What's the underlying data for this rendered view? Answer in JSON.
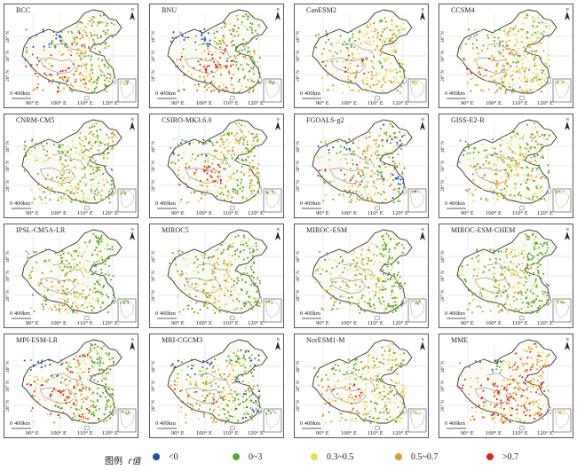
{
  "panels": [
    {
      "title": "BCC",
      "profile": "blueNW_redTibet"
    },
    {
      "title": "BNU",
      "profile": "blueNW_redTibet"
    },
    {
      "title": "CanESM2",
      "profile": "greenNW"
    },
    {
      "title": "CCSM4",
      "profile": "greenNW"
    },
    {
      "title": "CNRM-CM5",
      "profile": "greenNW_mixed"
    },
    {
      "title": "CSIRO-MK3.6.0",
      "profile": "greenNW_redTibet"
    },
    {
      "title": "FGOALS-g2",
      "profile": "blueNW_mixed"
    },
    {
      "title": "GISS-E2-R",
      "profile": "greenNW_mixed"
    },
    {
      "title": "IPSL-CM5A-LR",
      "profile": "greenEast"
    },
    {
      "title": "MIROC5",
      "profile": "greenEast"
    },
    {
      "title": "MIROC-ESM",
      "profile": "greenEast"
    },
    {
      "title": "MIROC-ESM-CHEM",
      "profile": "greenEast"
    },
    {
      "title": "MPI-ESM-LR",
      "profile": "blueNW_redTibet"
    },
    {
      "title": "MRI-CGCM3",
      "profile": "blueNW_mixed"
    },
    {
      "title": "NorESM1-M",
      "profile": "greenNW"
    },
    {
      "title": "MME",
      "profile": "mme"
    }
  ],
  "axes": {
    "lat_labels": [
      "40° N",
      "30° N",
      "20° N"
    ],
    "lon_labels": [
      "90° E",
      "100° E",
      "110° E",
      "120° E"
    ]
  },
  "scale_label": "0 400km",
  "north_label": "N",
  "legend": {
    "title": "图例",
    "var_label": "r值",
    "items": [
      {
        "label": "<0",
        "color": "#1f4db8"
      },
      {
        "label": "0~3",
        "color": "#5aa832"
      },
      {
        "label": "0.3~0.5",
        "color": "#e8dd5a"
      },
      {
        "label": "0.5~0.7",
        "color": "#e09a2e"
      },
      {
        "label": ">0.7",
        "color": "#d42a1e"
      }
    ]
  },
  "colors": {
    "neg": "#1f4db8",
    "low": "#5aa832",
    "mid": "#e8dd5a",
    "high": "#e09a2e",
    "top": "#d42a1e",
    "border": "#333333"
  }
}
